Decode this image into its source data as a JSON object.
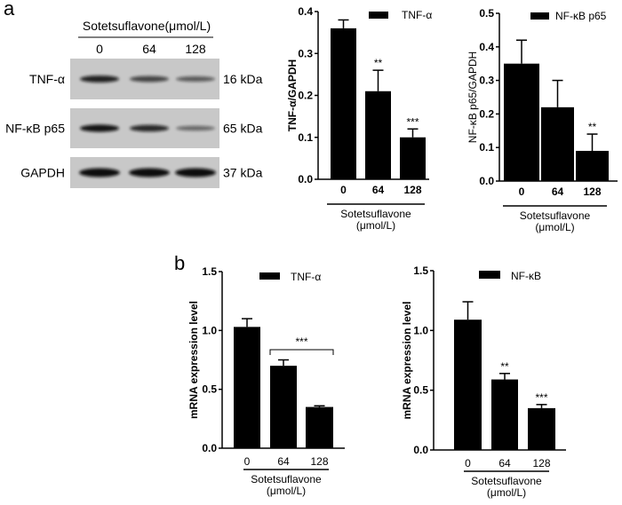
{
  "panel_labels": {
    "a": "a",
    "b": "b"
  },
  "blot": {
    "title": "Sotetsuflavone(μmol/L)",
    "lanes": [
      "0",
      "64",
      "128"
    ],
    "rows": [
      {
        "label": "TNF-α",
        "size": "16 kDa",
        "intensity": [
          0.85,
          0.6,
          0.45
        ]
      },
      {
        "label": "NF-κB  p65",
        "size": "65 kDa",
        "intensity": [
          0.95,
          0.8,
          0.35
        ]
      },
      {
        "label": "GAPDH",
        "size": "37 kDa",
        "intensity": [
          1.0,
          1.0,
          1.0
        ]
      }
    ]
  },
  "colors": {
    "bars": "#000000",
    "blot_background": "#c8c8c8"
  },
  "chart_data": [
    {
      "type": "bar",
      "panel": "a",
      "categories": [
        "0",
        "64",
        "128"
      ],
      "values": [
        0.36,
        0.21,
        0.1
      ],
      "errors": [
        0.02,
        0.05,
        0.02
      ],
      "significance": [
        "",
        "**",
        "***"
      ],
      "legend": "TNF-α",
      "legend_position": "top-right",
      "ylabel": "TNF-α/GAPDH",
      "xlabel": [
        "Sotetsuflavone",
        "(μmol/L)"
      ],
      "ylim": [
        0,
        0.4
      ],
      "yticks": [
        "0.0",
        "0.1",
        "0.2",
        "0.3",
        "0.4"
      ],
      "grid": false
    },
    {
      "type": "bar",
      "panel": "a",
      "categories": [
        "0",
        "64",
        "128"
      ],
      "values": [
        0.35,
        0.22,
        0.09
      ],
      "errors": [
        0.07,
        0.08,
        0.05
      ],
      "significance": [
        "",
        "",
        "**"
      ],
      "legend": "NF-κB p65",
      "legend_position": "top-right",
      "ylabel": "NF-κB p65/GAPDH",
      "xlabel": [
        "Sotetsuflavone",
        "(μmol/L)"
      ],
      "ylim": [
        0,
        0.5
      ],
      "yticks": [
        "0.0",
        "0.1",
        "0.2",
        "0.3",
        "0.4",
        "0.5"
      ],
      "grid": false
    },
    {
      "type": "bar",
      "panel": "b",
      "categories": [
        "0",
        "64",
        "128"
      ],
      "values": [
        1.03,
        0.7,
        0.35
      ],
      "errors": [
        0.07,
        0.05,
        0.01
      ],
      "significance": [],
      "bracket": {
        "from": "64",
        "to": "128",
        "label": "***"
      },
      "legend": "TNF-α",
      "legend_position": "top-right",
      "ylabel": "mRNA expression level",
      "xlabel": [
        "Sotetsuflavone",
        "(μmol/L)"
      ],
      "ylim": [
        0,
        1.5
      ],
      "yticks": [
        "0.0",
        "0.5",
        "1.0",
        "1.5"
      ],
      "grid": false
    },
    {
      "type": "bar",
      "panel": "b",
      "categories": [
        "0",
        "64",
        "128"
      ],
      "values": [
        1.09,
        0.59,
        0.35
      ],
      "errors": [
        0.15,
        0.05,
        0.03
      ],
      "significance": [
        "",
        "**",
        "***"
      ],
      "legend": "NF-κB",
      "legend_position": "top-right",
      "ylabel": "mRNA expression level",
      "xlabel": [
        "Sotetsuflavone",
        "(μmol/L)"
      ],
      "ylim": [
        0,
        1.5
      ],
      "yticks": [
        "0.0",
        "0.5",
        "1.0",
        "1.5"
      ],
      "grid": false
    }
  ]
}
